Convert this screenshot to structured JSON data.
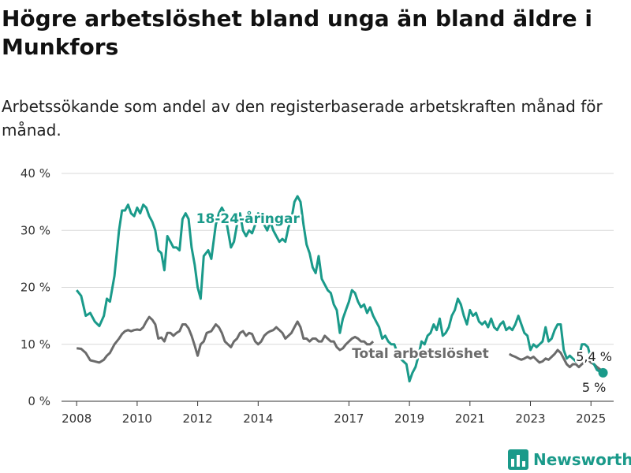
{
  "chart_data": {
    "type": "line",
    "title": "Högre arbetslöshet bland unga än bland äldre i Munkfors",
    "subtitle": "Arbetssökande som andel av den registerbaserade arbetskraften månad för månad.",
    "ylim": [
      0,
      40
    ],
    "y_ticks": [
      0,
      10,
      20,
      30,
      40
    ],
    "y_tick_labels": [
      "0 %",
      "10 %",
      "20 %",
      "30 %",
      "40 %"
    ],
    "xlim": [
      2007.5,
      2025.75
    ],
    "x_ticks": [
      2008,
      2010,
      2012,
      2014,
      2017,
      2019,
      2021,
      2023,
      2025
    ],
    "x_tick_labels": [
      "2008",
      "2010",
      "2012",
      "2014",
      "2017",
      "2019",
      "2021",
      "2023",
      "2025"
    ],
    "grid": true,
    "series": [
      {
        "name": "18-24-åringar",
        "color": "#1a9a8a",
        "points": [
          [
            2008.0,
            19.5
          ],
          [
            2008.15,
            18.5
          ],
          [
            2008.3,
            15.0
          ],
          [
            2008.45,
            15.5
          ],
          [
            2008.6,
            14.0
          ],
          [
            2008.75,
            13.2
          ],
          [
            2008.9,
            15.0
          ],
          [
            2009.0,
            18.0
          ],
          [
            2009.1,
            17.5
          ],
          [
            2009.25,
            22.0
          ],
          [
            2009.4,
            30.0
          ],
          [
            2009.5,
            33.5
          ],
          [
            2009.6,
            33.5
          ],
          [
            2009.7,
            34.5
          ],
          [
            2009.8,
            33.0
          ],
          [
            2009.9,
            32.5
          ],
          [
            2010.0,
            34.0
          ],
          [
            2010.1,
            33.0
          ],
          [
            2010.2,
            34.5
          ],
          [
            2010.3,
            34.0
          ],
          [
            2010.4,
            32.5
          ],
          [
            2010.5,
            31.5
          ],
          [
            2010.6,
            30.0
          ],
          [
            2010.7,
            26.5
          ],
          [
            2010.8,
            26.0
          ],
          [
            2010.9,
            23.0
          ],
          [
            2011.0,
            29.0
          ],
          [
            2011.1,
            28.0
          ],
          [
            2011.2,
            27.0
          ],
          [
            2011.3,
            27.0
          ],
          [
            2011.4,
            26.5
          ],
          [
            2011.5,
            32.0
          ],
          [
            2011.6,
            33.0
          ],
          [
            2011.7,
            32.0
          ],
          [
            2011.8,
            27.0
          ],
          [
            2011.9,
            24.0
          ],
          [
            2012.0,
            20.0
          ],
          [
            2012.1,
            18.0
          ],
          [
            2012.2,
            25.5
          ],
          [
            2012.35,
            26.5
          ],
          [
            2012.45,
            25.0
          ],
          [
            2012.6,
            31.0
          ],
          [
            2012.7,
            33.0
          ],
          [
            2012.8,
            34.0
          ],
          [
            2012.9,
            33.0
          ],
          [
            2013.0,
            30.0
          ],
          [
            2013.1,
            27.0
          ],
          [
            2013.2,
            28.0
          ],
          [
            2013.3,
            31.0
          ],
          [
            2013.4,
            33.0
          ],
          [
            2013.5,
            30.0
          ],
          [
            2013.6,
            29.0
          ],
          [
            2013.7,
            30.0
          ],
          [
            2013.8,
            29.5
          ],
          [
            2013.9,
            31.0
          ],
          [
            2014.0,
            33.0
          ],
          [
            2014.1,
            32.0
          ],
          [
            2014.2,
            31.0
          ],
          [
            2014.3,
            30.0
          ],
          [
            2014.4,
            31.5
          ],
          [
            2014.5,
            30.0
          ],
          [
            2014.6,
            29.0
          ],
          [
            2014.7,
            28.0
          ],
          [
            2014.8,
            28.5
          ],
          [
            2014.9,
            28.0
          ],
          [
            2015.0,
            30.5
          ],
          [
            2015.1,
            32.0
          ],
          [
            2015.2,
            35.0
          ],
          [
            2015.3,
            36.0
          ],
          [
            2015.4,
            35.0
          ],
          [
            2015.5,
            31.0
          ],
          [
            2015.6,
            27.5
          ],
          [
            2015.7,
            26.0
          ],
          [
            2015.8,
            23.5
          ],
          [
            2015.9,
            22.5
          ],
          [
            2016.0,
            25.5
          ],
          [
            2016.1,
            21.5
          ],
          [
            2016.2,
            20.5
          ],
          [
            2016.3,
            19.5
          ],
          [
            2016.4,
            19.0
          ],
          [
            2016.5,
            17.0
          ],
          [
            2016.6,
            16.0
          ],
          [
            2016.7,
            12.0
          ],
          [
            2016.8,
            14.5
          ],
          [
            2016.9,
            16.0
          ],
          [
            2017.0,
            17.5
          ],
          [
            2017.1,
            19.5
          ],
          [
            2017.2,
            19.0
          ],
          [
            2017.3,
            17.5
          ],
          [
            2017.4,
            16.5
          ],
          [
            2017.5,
            17.0
          ],
          [
            2017.6,
            15.5
          ],
          [
            2017.7,
            16.5
          ],
          [
            2017.8,
            15.0
          ],
          [
            2017.9,
            14.0
          ],
          [
            2018.0,
            13.0
          ],
          [
            2018.1,
            11.0
          ],
          [
            2018.2,
            11.5
          ],
          [
            2018.3,
            10.5
          ],
          [
            2018.4,
            10.0
          ],
          [
            2018.5,
            10.0
          ],
          [
            2018.6,
            8.5
          ],
          [
            2018.7,
            7.5
          ],
          [
            2018.8,
            7.0
          ],
          [
            2018.9,
            6.5
          ],
          [
            2019.0,
            3.5
          ],
          [
            2019.1,
            5.0
          ],
          [
            2019.2,
            6.0
          ],
          [
            2019.3,
            8.0
          ],
          [
            2019.4,
            10.5
          ],
          [
            2019.5,
            10.0
          ],
          [
            2019.6,
            11.5
          ],
          [
            2019.7,
            12.0
          ],
          [
            2019.8,
            13.5
          ],
          [
            2019.9,
            12.5
          ],
          [
            2020.0,
            14.5
          ],
          [
            2020.1,
            11.5
          ],
          [
            2020.2,
            12.0
          ],
          [
            2020.3,
            13.0
          ],
          [
            2020.4,
            15.0
          ],
          [
            2020.5,
            16.0
          ],
          [
            2020.6,
            18.0
          ],
          [
            2020.7,
            17.0
          ],
          [
            2020.8,
            15.0
          ],
          [
            2020.9,
            13.5
          ],
          [
            2021.0,
            16.0
          ],
          [
            2021.1,
            15.0
          ],
          [
            2021.2,
            15.5
          ],
          [
            2021.3,
            14.0
          ],
          [
            2021.4,
            13.5
          ],
          [
            2021.5,
            14.0
          ],
          [
            2021.6,
            13.0
          ],
          [
            2021.7,
            14.5
          ],
          [
            2021.8,
            13.0
          ],
          [
            2021.9,
            12.5
          ],
          [
            2022.0,
            13.5
          ],
          [
            2022.1,
            14.0
          ],
          [
            2022.2,
            12.5
          ],
          [
            2022.3,
            13.0
          ],
          [
            2022.4,
            12.5
          ],
          [
            2022.5,
            13.5
          ],
          [
            2022.6,
            15.0
          ],
          [
            2022.7,
            13.5
          ],
          [
            2022.8,
            12.0
          ],
          [
            2022.9,
            11.5
          ],
          [
            2023.0,
            9.0
          ],
          [
            2023.1,
            10.0
          ],
          [
            2023.2,
            9.5
          ],
          [
            2023.3,
            10.0
          ],
          [
            2023.4,
            10.5
          ],
          [
            2023.5,
            13.0
          ],
          [
            2023.6,
            10.5
          ],
          [
            2023.7,
            11.0
          ],
          [
            2023.8,
            12.5
          ],
          [
            2023.9,
            13.5
          ],
          [
            2024.0,
            13.5
          ],
          [
            2024.1,
            9.0
          ],
          [
            2024.2,
            7.5
          ],
          [
            2024.3,
            8.0
          ],
          [
            2024.4,
            7.5
          ],
          [
            2024.5,
            7.0
          ],
          [
            2024.6,
            7.5
          ],
          [
            2024.7,
            10.0
          ],
          [
            2024.8,
            10.0
          ],
          [
            2024.9,
            9.5
          ],
          [
            2025.0,
            7.5
          ],
          [
            2025.1,
            6.5
          ],
          [
            2025.2,
            5.5
          ],
          [
            2025.3,
            5.2
          ],
          [
            2025.4,
            5.0
          ]
        ],
        "end_label": "5 %"
      },
      {
        "name": "Total arbetslöshet",
        "color": "#6b6b6b",
        "points": [
          [
            2008.0,
            9.3
          ],
          [
            2008.15,
            9.2
          ],
          [
            2008.3,
            8.5
          ],
          [
            2008.45,
            7.2
          ],
          [
            2008.6,
            7.0
          ],
          [
            2008.75,
            6.8
          ],
          [
            2008.9,
            7.3
          ],
          [
            2009.0,
            8.0
          ],
          [
            2009.1,
            8.5
          ],
          [
            2009.25,
            10.0
          ],
          [
            2009.4,
            11.0
          ],
          [
            2009.5,
            11.8
          ],
          [
            2009.6,
            12.3
          ],
          [
            2009.7,
            12.5
          ],
          [
            2009.8,
            12.3
          ],
          [
            2009.9,
            12.5
          ],
          [
            2010.0,
            12.6
          ],
          [
            2010.1,
            12.5
          ],
          [
            2010.2,
            13.0
          ],
          [
            2010.3,
            14.0
          ],
          [
            2010.4,
            14.8
          ],
          [
            2010.5,
            14.3
          ],
          [
            2010.6,
            13.5
          ],
          [
            2010.7,
            11.0
          ],
          [
            2010.8,
            11.2
          ],
          [
            2010.9,
            10.5
          ],
          [
            2011.0,
            12.0
          ],
          [
            2011.1,
            12.0
          ],
          [
            2011.2,
            11.5
          ],
          [
            2011.3,
            12.0
          ],
          [
            2011.4,
            12.3
          ],
          [
            2011.5,
            13.5
          ],
          [
            2011.6,
            13.5
          ],
          [
            2011.7,
            12.8
          ],
          [
            2011.8,
            11.5
          ],
          [
            2011.9,
            9.8
          ],
          [
            2012.0,
            8.0
          ],
          [
            2012.1,
            10.0
          ],
          [
            2012.2,
            10.5
          ],
          [
            2012.3,
            12.0
          ],
          [
            2012.45,
            12.3
          ],
          [
            2012.6,
            13.5
          ],
          [
            2012.7,
            13.0
          ],
          [
            2012.8,
            12.0
          ],
          [
            2012.9,
            10.5
          ],
          [
            2013.0,
            10.0
          ],
          [
            2013.1,
            9.5
          ],
          [
            2013.2,
            10.5
          ],
          [
            2013.3,
            11.0
          ],
          [
            2013.4,
            12.0
          ],
          [
            2013.5,
            12.3
          ],
          [
            2013.6,
            11.5
          ],
          [
            2013.7,
            12.0
          ],
          [
            2013.8,
            11.8
          ],
          [
            2013.9,
            10.5
          ],
          [
            2014.0,
            10.0
          ],
          [
            2014.1,
            10.5
          ],
          [
            2014.2,
            11.5
          ],
          [
            2014.3,
            12.0
          ],
          [
            2014.4,
            12.3
          ],
          [
            2014.5,
            12.5
          ],
          [
            2014.6,
            13.0
          ],
          [
            2014.7,
            12.5
          ],
          [
            2014.8,
            12.0
          ],
          [
            2014.9,
            11.0
          ],
          [
            2015.0,
            11.5
          ],
          [
            2015.1,
            12.0
          ],
          [
            2015.2,
            13.0
          ],
          [
            2015.3,
            14.0
          ],
          [
            2015.4,
            13.0
          ],
          [
            2015.5,
            11.0
          ],
          [
            2015.6,
            11.0
          ],
          [
            2015.7,
            10.5
          ],
          [
            2015.8,
            11.0
          ],
          [
            2015.9,
            11.0
          ],
          [
            2016.0,
            10.5
          ],
          [
            2016.1,
            10.5
          ],
          [
            2016.2,
            11.5
          ],
          [
            2016.3,
            11.0
          ],
          [
            2016.4,
            10.5
          ],
          [
            2016.5,
            10.5
          ],
          [
            2016.6,
            9.5
          ],
          [
            2016.7,
            9.0
          ],
          [
            2016.8,
            9.3
          ],
          [
            2016.9,
            10.0
          ],
          [
            2017.0,
            10.5
          ],
          [
            2017.1,
            11.0
          ],
          [
            2017.2,
            11.3
          ],
          [
            2017.3,
            11.0
          ],
          [
            2017.4,
            10.5
          ],
          [
            2017.5,
            10.5
          ],
          [
            2017.6,
            10.0
          ],
          [
            2017.7,
            10.0
          ],
          [
            2017.8,
            10.5
          ]
        ],
        "points_after_label": [
          [
            2022.3,
            8.3
          ],
          [
            2022.4,
            8.0
          ],
          [
            2022.5,
            7.8
          ],
          [
            2022.6,
            7.5
          ],
          [
            2022.7,
            7.3
          ],
          [
            2022.8,
            7.5
          ],
          [
            2022.9,
            7.8
          ],
          [
            2023.0,
            7.5
          ],
          [
            2023.1,
            7.8
          ],
          [
            2023.2,
            7.3
          ],
          [
            2023.3,
            6.8
          ],
          [
            2023.4,
            7.0
          ],
          [
            2023.5,
            7.5
          ],
          [
            2023.6,
            7.3
          ],
          [
            2023.7,
            7.8
          ],
          [
            2023.8,
            8.3
          ],
          [
            2023.9,
            9.0
          ],
          [
            2024.0,
            8.5
          ],
          [
            2024.1,
            7.5
          ],
          [
            2024.2,
            6.5
          ],
          [
            2024.3,
            6.0
          ],
          [
            2024.4,
            6.5
          ],
          [
            2024.5,
            6.5
          ],
          [
            2024.6,
            6.0
          ],
          [
            2024.7,
            6.5
          ],
          [
            2024.8,
            7.0
          ],
          [
            2024.9,
            7.3
          ],
          [
            2025.0,
            6.8
          ],
          [
            2025.1,
            6.5
          ],
          [
            2025.2,
            6.0
          ],
          [
            2025.3,
            5.6
          ],
          [
            2025.4,
            5.4
          ]
        ],
        "end_label": "5,4 %"
      }
    ]
  },
  "logo": {
    "text": "Newsworthy",
    "icon": "bar-chart-logo-icon"
  }
}
